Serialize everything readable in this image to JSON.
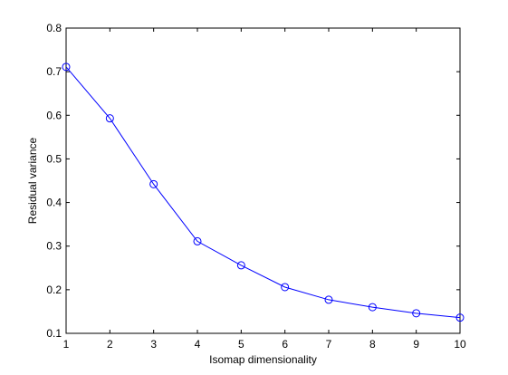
{
  "chart_data": {
    "type": "line",
    "title": "",
    "xlabel": "Isomap dimensionality",
    "ylabel": "Residual variance",
    "xlim": [
      1,
      10
    ],
    "ylim": [
      0.1,
      0.8
    ],
    "xticks": [
      1,
      2,
      3,
      4,
      5,
      6,
      7,
      8,
      9,
      10
    ],
    "yticks": [
      0.1,
      0.2,
      0.3,
      0.4,
      0.5,
      0.6,
      0.7,
      0.8
    ],
    "ytick_labels": [
      "0.1",
      "0.2",
      "0.3",
      "0.4",
      "0.5",
      "0.6",
      "0.7",
      "0.8"
    ],
    "grid": false,
    "marker": "circle",
    "series": [
      {
        "x": [
          1,
          2,
          3,
          4,
          5,
          6,
          7,
          8,
          9,
          10
        ],
        "values": [
          0.711,
          0.593,
          0.442,
          0.311,
          0.256,
          0.206,
          0.177,
          0.16,
          0.146,
          0.136
        ],
        "color": "#0000ff"
      }
    ]
  }
}
